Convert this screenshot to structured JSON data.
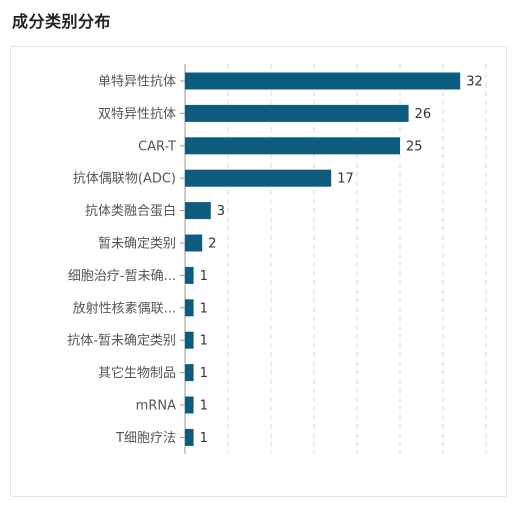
{
  "page_title": "成分类别分布",
  "colors": {
    "bar": "#0d5c7d",
    "grid": "#d9d9d9",
    "axis": "#999999",
    "label": "#555555",
    "value": "#333333"
  },
  "chart_data": {
    "type": "bar",
    "orientation": "horizontal",
    "title": "",
    "xlabel": "",
    "ylabel": "",
    "categories": [
      "单特异性抗体",
      "双特异性抗体",
      "CAR-T",
      "抗体偶联物(ADC)",
      "抗体类融合蛋白",
      "暂未确定类别",
      "细胞治疗-暂未确...",
      "放射性核素偶联...",
      "抗体-暂未确定类别",
      "其它生物制品",
      "mRNA",
      "T细胞疗法"
    ],
    "values": [
      32,
      26,
      25,
      17,
      3,
      2,
      1,
      1,
      1,
      1,
      1,
      1
    ],
    "xlim": [
      0,
      35
    ],
    "grid": true,
    "grid_style": "dashed",
    "legend": "none"
  }
}
